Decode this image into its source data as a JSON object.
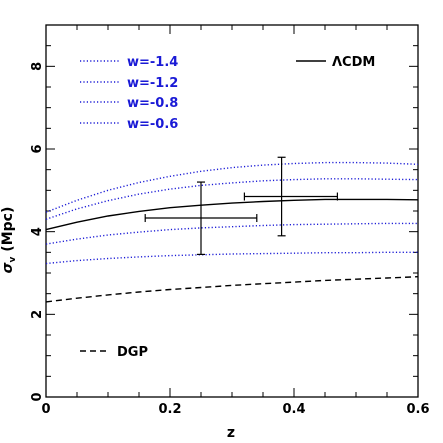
{
  "chart_data": {
    "type": "line",
    "title": "",
    "xlabel": "z",
    "ylabel": "σ_v (Mpc)",
    "ylabel_main": "σ",
    "ylabel_sub": "v",
    "ylabel_unit": " (Mpc)",
    "xlim": [
      0,
      0.6
    ],
    "ylim": [
      0,
      9
    ],
    "xticks": [
      0,
      0.2,
      0.4,
      0.6
    ],
    "xtick_labels": [
      "0",
      "0.2",
      "0.4",
      "0.6"
    ],
    "yticks": [
      0,
      2,
      4,
      6,
      8
    ],
    "ytick_labels": [
      "0",
      "2",
      "4",
      "6",
      "8"
    ],
    "grid": false,
    "colors": {
      "lcdm": "#000000",
      "w": "#1a1ad6",
      "dgp": "#000000",
      "errorbar": "#000000"
    },
    "series": [
      {
        "name": "w=-1.4",
        "style": "dotted",
        "x": [
          0,
          0.05,
          0.1,
          0.15,
          0.2,
          0.25,
          0.3,
          0.35,
          0.4,
          0.45,
          0.5,
          0.55,
          0.6
        ],
        "y": [
          4.47,
          4.76,
          5.0,
          5.19,
          5.34,
          5.46,
          5.55,
          5.61,
          5.65,
          5.67,
          5.67,
          5.66,
          5.63
        ]
      },
      {
        "name": "w=-1.2",
        "style": "dotted",
        "x": [
          0,
          0.05,
          0.1,
          0.15,
          0.2,
          0.25,
          0.3,
          0.35,
          0.4,
          0.45,
          0.5,
          0.55,
          0.6
        ],
        "y": [
          4.3,
          4.55,
          4.75,
          4.91,
          5.03,
          5.12,
          5.18,
          5.23,
          5.26,
          5.28,
          5.28,
          5.27,
          5.26
        ]
      },
      {
        "name": "ΛCDM",
        "style": "solid",
        "x": [
          0,
          0.05,
          0.1,
          0.15,
          0.2,
          0.25,
          0.3,
          0.35,
          0.4,
          0.45,
          0.5,
          0.55,
          0.6
        ],
        "y": [
          4.05,
          4.23,
          4.38,
          4.49,
          4.58,
          4.64,
          4.69,
          4.73,
          4.76,
          4.78,
          4.78,
          4.78,
          4.77
        ]
      },
      {
        "name": "w=-0.8",
        "style": "dotted",
        "x": [
          0,
          0.05,
          0.1,
          0.15,
          0.2,
          0.25,
          0.3,
          0.35,
          0.4,
          0.45,
          0.5,
          0.55,
          0.6
        ],
        "y": [
          3.7,
          3.82,
          3.92,
          3.99,
          4.05,
          4.09,
          4.12,
          4.15,
          4.17,
          4.18,
          4.19,
          4.2,
          4.2
        ]
      },
      {
        "name": "w=-0.6",
        "style": "dotted",
        "x": [
          0,
          0.05,
          0.1,
          0.15,
          0.2,
          0.25,
          0.3,
          0.35,
          0.4,
          0.45,
          0.5,
          0.55,
          0.6
        ],
        "y": [
          3.23,
          3.3,
          3.35,
          3.39,
          3.42,
          3.44,
          3.46,
          3.47,
          3.48,
          3.49,
          3.49,
          3.5,
          3.5
        ]
      },
      {
        "name": "DGP",
        "style": "dashed",
        "x": [
          0,
          0.05,
          0.1,
          0.15,
          0.2,
          0.25,
          0.3,
          0.35,
          0.4,
          0.45,
          0.5,
          0.55,
          0.6
        ],
        "y": [
          2.3,
          2.39,
          2.47,
          2.54,
          2.6,
          2.65,
          2.7,
          2.74,
          2.78,
          2.82,
          2.85,
          2.88,
          2.91
        ]
      }
    ],
    "points": [
      {
        "x": 0.25,
        "y": 4.33,
        "x_err": [
          0.16,
          0.34
        ],
        "y_err": [
          3.45,
          5.2
        ]
      },
      {
        "x": 0.38,
        "y": 4.85,
        "x_err": [
          0.32,
          0.47
        ],
        "y_err": [
          3.9,
          5.8
        ]
      }
    ],
    "legend": {
      "w_entries": [
        "w=-1.4",
        "w=-1.2",
        "w=-0.8",
        "w=-0.6"
      ],
      "lcdm_label": "ΛCDM",
      "dgp_label": "DGP"
    }
  }
}
